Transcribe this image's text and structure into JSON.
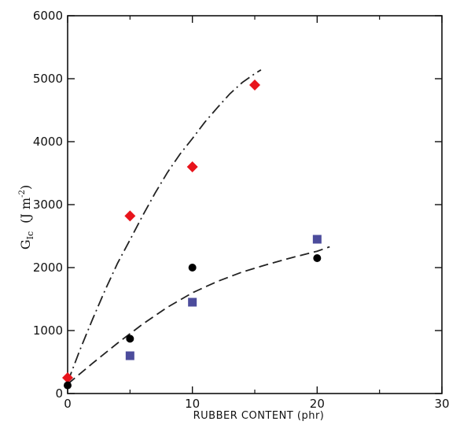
{
  "chart_data": {
    "type": "scatter",
    "title": "",
    "xlabel": "RUBBER CONTENT (phr)",
    "ylabel_main": "G",
    "ylabel_sub": "Ic",
    "ylabel_units_prefix": "(J m",
    "ylabel_units_sup": "-2",
    "ylabel_units_suffix": ")",
    "ylabel": "GIc (J m-2)",
    "xlim": [
      0,
      30
    ],
    "ylim": [
      0,
      6000
    ],
    "x_ticks": [
      0,
      10,
      20,
      30
    ],
    "x_tick_labels": [
      "0",
      "10",
      "20",
      "30"
    ],
    "x_minor_ticks": [
      5,
      15,
      25
    ],
    "y_ticks": [
      0,
      1000,
      2000,
      3000,
      4000,
      5000,
      6000
    ],
    "y_tick_labels": [
      "0",
      "1000",
      "2000",
      "3000",
      "4000",
      "5000",
      "6000"
    ],
    "grid": false,
    "legend": "none",
    "series": [
      {
        "marker": "diamond",
        "color": "#e8141c",
        "x": [
          0,
          5,
          10,
          15
        ],
        "y": [
          250,
          2820,
          3600,
          4900
        ]
      },
      {
        "marker": "circle",
        "color": "#000000",
        "x": [
          0,
          5,
          10,
          20
        ],
        "y": [
          130,
          870,
          2000,
          2150
        ]
      },
      {
        "marker": "square",
        "color": "#4c4c9c",
        "x": [
          5,
          10,
          20
        ],
        "y": [
          600,
          1450,
          2450
        ]
      }
    ],
    "fit_lines": [
      {
        "style": "dash-dot",
        "color": "#222222",
        "x": [
          0,
          1,
          2,
          3,
          4,
          5,
          6,
          7,
          8,
          9,
          10,
          11,
          12,
          13,
          14,
          15,
          15.5
        ],
        "y": [
          180,
          700,
          1180,
          1640,
          2070,
          2440,
          2820,
          3180,
          3510,
          3800,
          4050,
          4310,
          4540,
          4760,
          4940,
          5080,
          5140
        ]
      },
      {
        "style": "dashed",
        "color": "#222222",
        "x": [
          0,
          2,
          4,
          6,
          8,
          10,
          12,
          14,
          16,
          18,
          20,
          21
        ],
        "y": [
          150,
          480,
          800,
          1100,
          1370,
          1600,
          1780,
          1930,
          2050,
          2160,
          2260,
          2330
        ]
      }
    ]
  }
}
